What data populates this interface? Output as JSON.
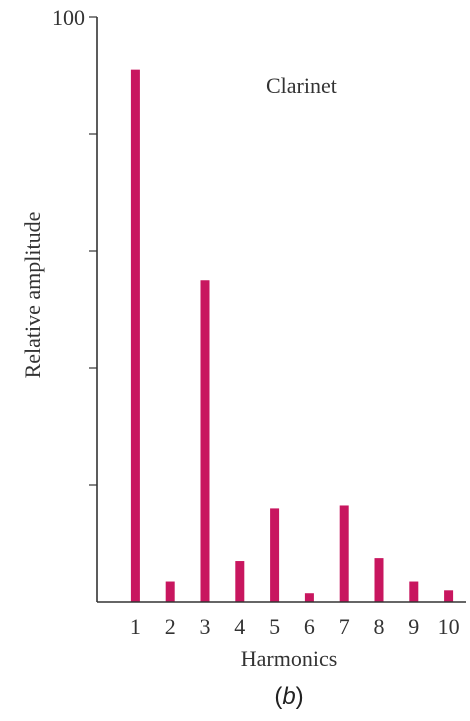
{
  "chart_data": {
    "type": "bar",
    "annotation": "Clarinet",
    "panel_label": "(b)",
    "panel_label_letter": "b",
    "xlabel": "Harmonics",
    "ylabel": "Relative amplitude",
    "categories": [
      "1",
      "2",
      "3",
      "4",
      "5",
      "6",
      "7",
      "8",
      "9",
      "10"
    ],
    "values": [
      91,
      3.5,
      55,
      7,
      16,
      1.5,
      16.5,
      7.5,
      3.5,
      2
    ],
    "ylim": [
      0,
      100
    ],
    "y_tick_values": [
      0,
      20,
      40,
      60,
      80,
      100
    ],
    "y_tick_labels": [
      "",
      "",
      "",
      "",
      "",
      "100"
    ],
    "grid": false,
    "legend": "none",
    "colors": {
      "bar": "#C8165F",
      "axis": "#333333"
    }
  }
}
